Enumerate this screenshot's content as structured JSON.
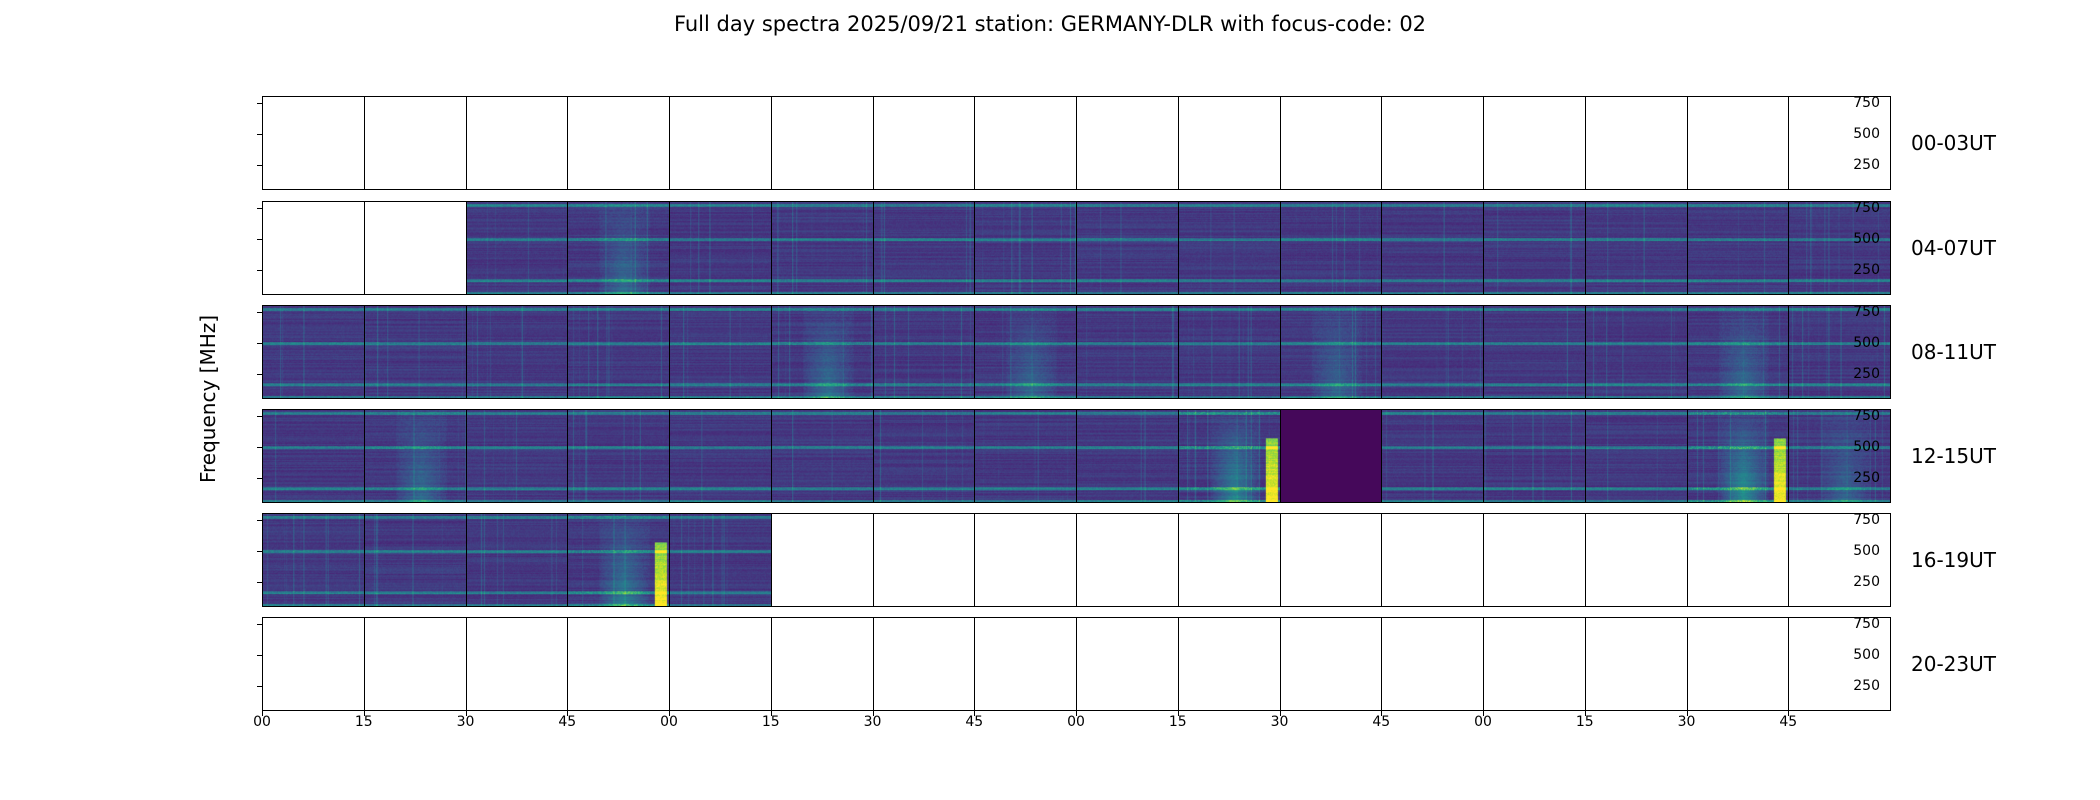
{
  "chart_data": {
    "type": "heatmap",
    "title": "Full day spectra 2025/09/21 station: GERMANY-DLR with focus-code: 02",
    "ylabel": "Frequency [MHz]",
    "xlabel": "",
    "ylim": [
      50,
      805
    ],
    "yticks": [
      "750",
      "500",
      "250"
    ],
    "ytick_values": [
      750,
      500,
      250
    ],
    "xticks": [
      "00",
      "15",
      "30",
      "45",
      "00",
      "15",
      "30",
      "45",
      "00",
      "15",
      "30",
      "45",
      "00",
      "15",
      "30",
      "45"
    ],
    "colormap": "viridis",
    "note_activity": "per 15-min panel relative intensity 0-1; null = no data",
    "rows": [
      {
        "label": "00-03UT",
        "panels": [
          null,
          null,
          null,
          null,
          null,
          null,
          null,
          null,
          null,
          null,
          null,
          null,
          null,
          null,
          null,
          null
        ]
      },
      {
        "label": "04-07UT",
        "panels": [
          null,
          null,
          0.2,
          0.35,
          0.2,
          0.2,
          0.2,
          0.2,
          0.2,
          0.15,
          0.2,
          0.2,
          0.2,
          0.2,
          0.25,
          0.2
        ]
      },
      {
        "label": "08-11UT",
        "panels": [
          0.2,
          0.2,
          0.2,
          0.2,
          0.25,
          0.4,
          0.2,
          0.3,
          0.2,
          0.15,
          0.3,
          0.2,
          0.2,
          0.2,
          0.35,
          0.2
        ]
      },
      {
        "label": "12-15UT",
        "panels": [
          0.2,
          0.35,
          0.15,
          0.2,
          0.2,
          0.2,
          0.2,
          0.2,
          0.2,
          0.6,
          0.0,
          0.2,
          0.2,
          0.2,
          0.7,
          0.3
        ]
      },
      {
        "label": "16-19UT",
        "panels": [
          0.25,
          0.2,
          0.2,
          0.5,
          0.1,
          null,
          null,
          null,
          null,
          null,
          null,
          null,
          null,
          null,
          null,
          null
        ]
      },
      {
        "label": "20-23UT",
        "panels": [
          null,
          null,
          null,
          null,
          null,
          null,
          null,
          null,
          null,
          null,
          null,
          null,
          null,
          null,
          null,
          null
        ]
      }
    ]
  }
}
